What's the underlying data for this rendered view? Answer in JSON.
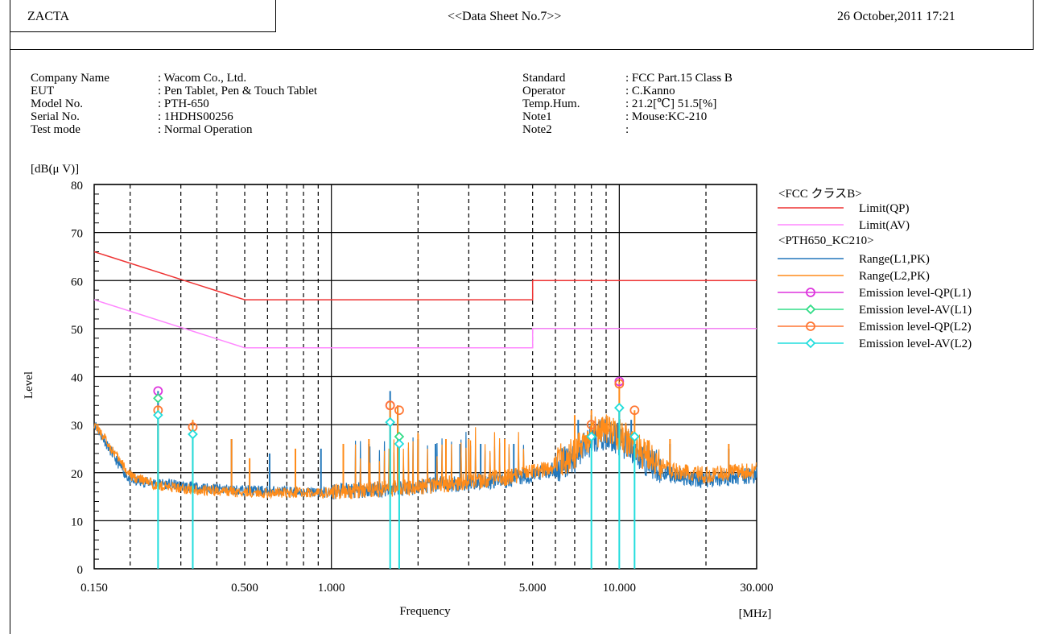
{
  "header": {
    "company": "ZACTA",
    "title": "<<Data Sheet No.7>>",
    "datetime": "26 October,2011 17:21"
  },
  "info_left": [
    {
      "label": "Company Name",
      "value": ": Wacom Co., Ltd."
    },
    {
      "label": "EUT",
      "value": ": Pen Tablet, Pen & Touch Tablet"
    },
    {
      "label": "Model No.",
      "value": ": PTH-650"
    },
    {
      "label": "Serial No.",
      "value": ": 1HDHS00256"
    },
    {
      "label": "Test mode",
      "value": ": Normal Operation"
    }
  ],
  "info_right": [
    {
      "label": "Standard",
      "value": ": FCC Part.15 Class B"
    },
    {
      "label": "Operator",
      "value": ": C.Kanno"
    },
    {
      "label": "Temp.Hum.",
      "value": ": 21.2[℃]  51.5[%]"
    },
    {
      "label": "Note1",
      "value": ": Mouse:KC-210"
    },
    {
      "label": "Note2",
      "value": ":"
    }
  ],
  "legend": {
    "group1_title": "<FCC クラスB>",
    "group2_title": "<PTH650_KC210>",
    "items": [
      {
        "label": "Limit(QP)",
        "color": "#ee3333",
        "marker": "none"
      },
      {
        "label": "Limit(AV)",
        "color": "#ff88ff",
        "marker": "none"
      },
      {
        "label": "Range(L1,PK)",
        "color": "#2277bb",
        "marker": "none"
      },
      {
        "label": "Range(L2,PK)",
        "color": "#ff8c1a",
        "marker": "none"
      },
      {
        "label": "Emission level-QP(L1)",
        "color": "#dd33dd",
        "marker": "circle"
      },
      {
        "label": "Emission level-AV(L1)",
        "color": "#33dd88",
        "marker": "diamond"
      },
      {
        "label": "Emission level-QP(L2)",
        "color": "#ff7733",
        "marker": "circle"
      },
      {
        "label": "Emission level-AV(L2)",
        "color": "#22dddd",
        "marker": "diamond"
      }
    ]
  },
  "chart_data": {
    "type": "line",
    "x_scale": "log",
    "xlim": [
      0.15,
      30
    ],
    "ylim": [
      0,
      80
    ],
    "ylabel": "Level",
    "yunit": "[dB(μ V)]",
    "xlabel": "Frequency",
    "xunit": "[MHz]",
    "y_ticks": [
      "0",
      "10",
      "20",
      "30",
      "40",
      "50",
      "60",
      "70",
      "80"
    ],
    "x_tick_labels": [
      {
        "value": 0.15,
        "label": "0.150"
      },
      {
        "value": 0.5,
        "label": "0.500"
      },
      {
        "value": 1,
        "label": "1.000"
      },
      {
        "value": 5,
        "label": "5.000"
      },
      {
        "value": 10,
        "label": "10.000"
      },
      {
        "value": 30,
        "label": "30.000"
      }
    ],
    "grid": true,
    "limits": [
      {
        "name": "Limit(QP)",
        "color": "#ee3333",
        "points": [
          [
            0.15,
            66
          ],
          [
            0.5,
            56
          ],
          [
            5,
            56
          ],
          [
            5,
            60
          ],
          [
            30,
            60
          ]
        ]
      },
      {
        "name": "Limit(AV)",
        "color": "#ff88ff",
        "points": [
          [
            0.15,
            56
          ],
          [
            0.5,
            46
          ],
          [
            5,
            46
          ],
          [
            5,
            50
          ],
          [
            30,
            50
          ]
        ]
      }
    ],
    "range_spectra": [
      {
        "name": "Range(L1,PK)",
        "color": "#2277bb",
        "baseline": [
          [
            0.15,
            30
          ],
          [
            0.18,
            22
          ],
          [
            0.2,
            18
          ],
          [
            0.25,
            17.5
          ],
          [
            0.35,
            16.5
          ],
          [
            0.5,
            16
          ],
          [
            1,
            15.5
          ],
          [
            2,
            16.5
          ],
          [
            4,
            18
          ],
          [
            5,
            19
          ],
          [
            6,
            20
          ],
          [
            7,
            22
          ],
          [
            8,
            26
          ],
          [
            9,
            27
          ],
          [
            10,
            26
          ],
          [
            12,
            22
          ],
          [
            15,
            19
          ],
          [
            20,
            18
          ],
          [
            30,
            19
          ]
        ],
        "peaks": [
          [
            0.25,
            37
          ],
          [
            0.33,
            29
          ],
          [
            0.45,
            27
          ],
          [
            0.61,
            24
          ],
          [
            0.92,
            25
          ],
          [
            1.35,
            26
          ],
          [
            1.6,
            37
          ],
          [
            1.7,
            34
          ],
          [
            2.0,
            27
          ],
          [
            2.3,
            26
          ],
          [
            2.8,
            26
          ],
          [
            3.3,
            26
          ],
          [
            4.3,
            26
          ],
          [
            7.2,
            31
          ],
          [
            8,
            32
          ],
          [
            10,
            34
          ],
          [
            11,
            31
          ],
          [
            15,
            26
          ],
          [
            24,
            25
          ]
        ]
      },
      {
        "name": "Range(L2,PK)",
        "color": "#ff8c1a",
        "baseline": [
          [
            0.15,
            30
          ],
          [
            0.18,
            23
          ],
          [
            0.2,
            19
          ],
          [
            0.25,
            17
          ],
          [
            0.35,
            16
          ],
          [
            0.5,
            15.5
          ],
          [
            1,
            15.5
          ],
          [
            2,
            16.5
          ],
          [
            4,
            18.5
          ],
          [
            5,
            19.5
          ],
          [
            6,
            21
          ],
          [
            7,
            23
          ],
          [
            8,
            27
          ],
          [
            9,
            28
          ],
          [
            10,
            27
          ],
          [
            12,
            23
          ],
          [
            15,
            20
          ],
          [
            20,
            19
          ],
          [
            30,
            20
          ]
        ],
        "peaks": [
          [
            0.25,
            34
          ],
          [
            0.33,
            31
          ],
          [
            0.45,
            27
          ],
          [
            0.52,
            23
          ],
          [
            0.75,
            25
          ],
          [
            1.1,
            26
          ],
          [
            1.35,
            27
          ],
          [
            1.6,
            35
          ],
          [
            1.7,
            34
          ],
          [
            2.0,
            28
          ],
          [
            2.5,
            27
          ],
          [
            3.0,
            27
          ],
          [
            4.0,
            27
          ],
          [
            7.0,
            32
          ],
          [
            8,
            33
          ],
          [
            10,
            39
          ],
          [
            11.3,
            33
          ],
          [
            15,
            27
          ],
          [
            24,
            26
          ]
        ]
      }
    ],
    "emissions": [
      {
        "name": "Emission level-QP(L1)",
        "color": "#dd33dd",
        "marker": "circle",
        "points": [
          [
            0.25,
            37
          ],
          [
            1.6,
            34
          ],
          [
            10,
            39
          ]
        ]
      },
      {
        "name": "Emission level-AV(L1)",
        "color": "#33dd88",
        "marker": "diamond",
        "points": [
          [
            0.25,
            35.5
          ],
          [
            0.33,
            28
          ],
          [
            1.6,
            30.5
          ],
          [
            1.72,
            27.5
          ],
          [
            8,
            27.5
          ],
          [
            10,
            33.5
          ],
          [
            11.3,
            27.5
          ]
        ]
      },
      {
        "name": "Emission level-QP(L2)",
        "color": "#ff7733",
        "marker": "circle",
        "points": [
          [
            0.25,
            33
          ],
          [
            0.33,
            29.5
          ],
          [
            1.6,
            34
          ],
          [
            1.72,
            33
          ],
          [
            8,
            30
          ],
          [
            10,
            38.5
          ],
          [
            11.3,
            33
          ]
        ]
      },
      {
        "name": "Emission level-AV(L2)",
        "color": "#22dddd",
        "marker": "diamond",
        "points": [
          [
            0.25,
            32
          ],
          [
            0.33,
            28
          ],
          [
            1.6,
            30.5
          ],
          [
            1.72,
            26
          ],
          [
            8,
            27.5
          ],
          [
            10,
            33.5
          ],
          [
            11.3,
            27.5
          ]
        ]
      }
    ]
  }
}
